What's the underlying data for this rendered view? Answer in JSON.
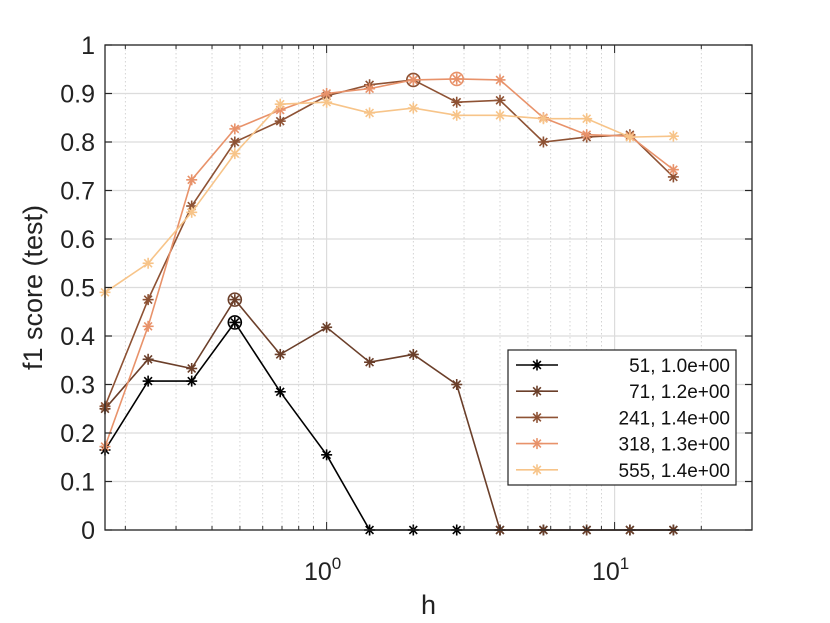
{
  "chart_data": {
    "type": "line",
    "xlabel": "h",
    "ylabel": "f1 score (test)",
    "xscale": "log",
    "xlim": [
      0.17,
      30
    ],
    "ylim": [
      0,
      1
    ],
    "grid": true,
    "legend_position": "bottom-right",
    "x_major_ticks": [
      1,
      10
    ],
    "x_tick_labels": [
      {
        "base": "10",
        "exp": "0"
      },
      {
        "base": "10",
        "exp": "1"
      }
    ],
    "y_ticks": [
      0,
      0.1,
      0.2,
      0.3,
      0.4,
      0.5,
      0.6,
      0.7,
      0.8,
      0.9,
      1
    ],
    "y_tick_labels": [
      "0",
      "0.1",
      "0.2",
      "0.3",
      "0.4",
      "0.5",
      "0.6",
      "0.7",
      "0.8",
      "0.9",
      "1"
    ],
    "series": [
      {
        "name": "51, 1.0e+00",
        "color": "#000000",
        "x": [
          0.17,
          0.24,
          0.34,
          0.48,
          0.69,
          1.0,
          1.41,
          2.0,
          2.83,
          4.0,
          5.66,
          8.0,
          11.3,
          16.0
        ],
        "y": [
          0.165,
          0.307,
          0.307,
          0.428,
          0.285,
          0.155,
          0,
          0,
          0,
          0,
          0,
          0,
          0,
          0
        ],
        "circled_index": 3
      },
      {
        "name": "71, 1.2e+00",
        "color": "#6b3f2a",
        "x": [
          0.17,
          0.24,
          0.34,
          0.48,
          0.69,
          1.0,
          1.41,
          2.0,
          2.83,
          4.0,
          5.66,
          8.0,
          11.3,
          16.0
        ],
        "y": [
          0.25,
          0.352,
          0.333,
          0.475,
          0.362,
          0.418,
          0.346,
          0.362,
          0.3,
          0,
          0,
          0,
          0,
          0
        ],
        "circled_index": 3
      },
      {
        "name": "241, 1.4e+00",
        "color": "#8e5234",
        "x": [
          0.17,
          0.24,
          0.34,
          0.48,
          0.69,
          1.0,
          1.41,
          2.0,
          2.83,
          4.0,
          5.66,
          8.0,
          11.3,
          16.0
        ],
        "y": [
          0.255,
          0.475,
          0.668,
          0.8,
          0.843,
          0.895,
          0.918,
          0.928,
          0.882,
          0.886,
          0.8,
          0.81,
          0.815,
          0.728
        ],
        "circled_index": 7
      },
      {
        "name": "318, 1.3e+00",
        "color": "#e8926a",
        "x": [
          0.17,
          0.24,
          0.34,
          0.48,
          0.69,
          1.0,
          1.41,
          2.0,
          2.83,
          4.0,
          5.66,
          8.0,
          11.3,
          16.0
        ],
        "y": [
          0.172,
          0.42,
          0.722,
          0.827,
          0.866,
          0.9,
          0.91,
          0.928,
          0.93,
          0.928,
          0.85,
          0.815,
          0.812,
          0.743
        ],
        "circled_index": 8
      },
      {
        "name": "555, 1.4e+00",
        "color": "#f7c489",
        "x": [
          0.17,
          0.24,
          0.34,
          0.48,
          0.69,
          1.0,
          1.41,
          2.0,
          2.83,
          4.0,
          5.66,
          8.0,
          11.3,
          16.0
        ],
        "y": [
          0.49,
          0.55,
          0.655,
          0.776,
          0.878,
          0.882,
          0.86,
          0.87,
          0.855,
          0.855,
          0.848,
          0.848,
          0.81,
          0.812
        ],
        "circled_index": -1
      }
    ]
  }
}
